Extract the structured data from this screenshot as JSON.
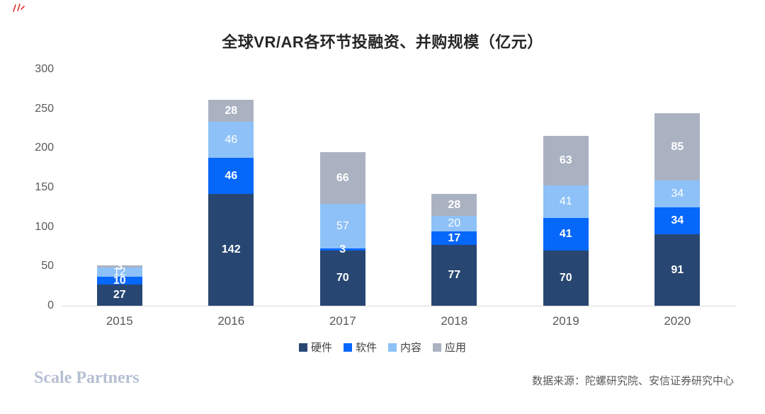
{
  "header": {
    "title": "全球VR/AR各环节投融资、并购规模（亿元）"
  },
  "chart_data": {
    "type": "bar",
    "stacked": true,
    "title": "全球VR/AR各环节投融资、并购规模（亿元）",
    "categories": [
      "2015",
      "2016",
      "2017",
      "2018",
      "2019",
      "2020"
    ],
    "series": [
      {
        "name": "硬件",
        "color": "#284672",
        "label_bold": true,
        "values": [
          27,
          142,
          70,
          77,
          70,
          91
        ]
      },
      {
        "name": "软件",
        "color": "#0667fb",
        "label_bold": true,
        "values": [
          10,
          46,
          3,
          17,
          41,
          34
        ]
      },
      {
        "name": "内容",
        "color": "#8dc1f8",
        "label_bold": false,
        "values": [
          12,
          46,
          57,
          20,
          41,
          34
        ]
      },
      {
        "name": "应用",
        "color": "#aab2c2",
        "label_bold": true,
        "values": [
          3,
          28,
          66,
          28,
          63,
          85
        ]
      }
    ],
    "xlabel": "",
    "ylabel": "",
    "ylim": [
      0,
      300
    ],
    "yticks": [
      0,
      50,
      100,
      150,
      200,
      250,
      300
    ],
    "grid": false,
    "legend_position": "bottom",
    "data_label_color": "#ffffff",
    "axis_text_color": "#595959"
  },
  "footer": {
    "brand": "Scale Partners",
    "source": "数据来源：陀螺研究院、安信证券研究中心"
  }
}
